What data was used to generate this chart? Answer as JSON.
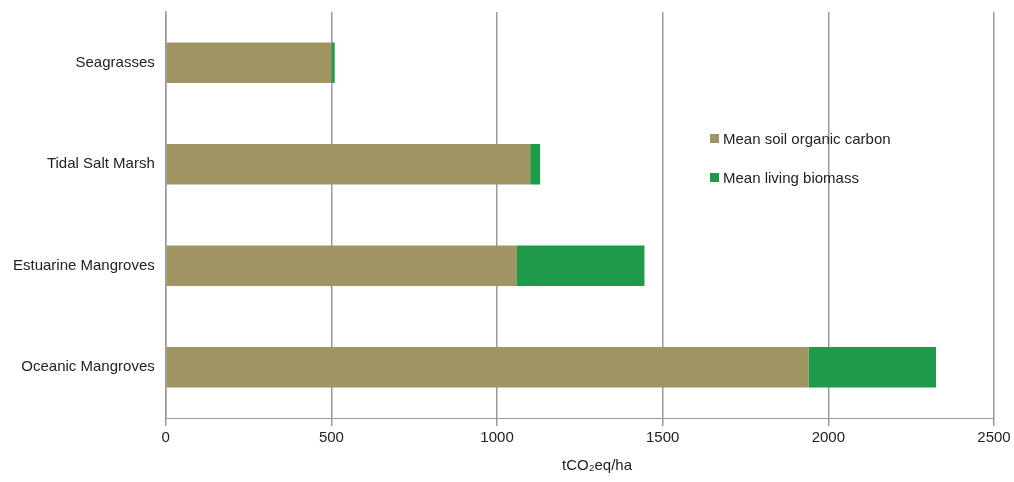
{
  "chart_data": {
    "type": "bar",
    "orientation": "horizontal",
    "stacked": true,
    "categories": [
      "Seagrasses",
      "Tidal Salt Marsh",
      "Estuarine Mangroves",
      "Oceanic Mangroves"
    ],
    "series": [
      {
        "name": "Mean soil organic carbon",
        "color": "#a09462",
        "values": [
          500,
          1100,
          1060,
          1940
        ]
      },
      {
        "name": "Mean living biomass",
        "color": "#1f9a4a",
        "values": [
          10,
          30,
          385,
          385
        ]
      }
    ],
    "xlim": [
      0,
      2500
    ],
    "xticks": [
      0,
      500,
      1000,
      1500,
      2000,
      2500
    ],
    "xlabel": "tCO₂eq/ha",
    "grid": "x",
    "legend": "right"
  }
}
